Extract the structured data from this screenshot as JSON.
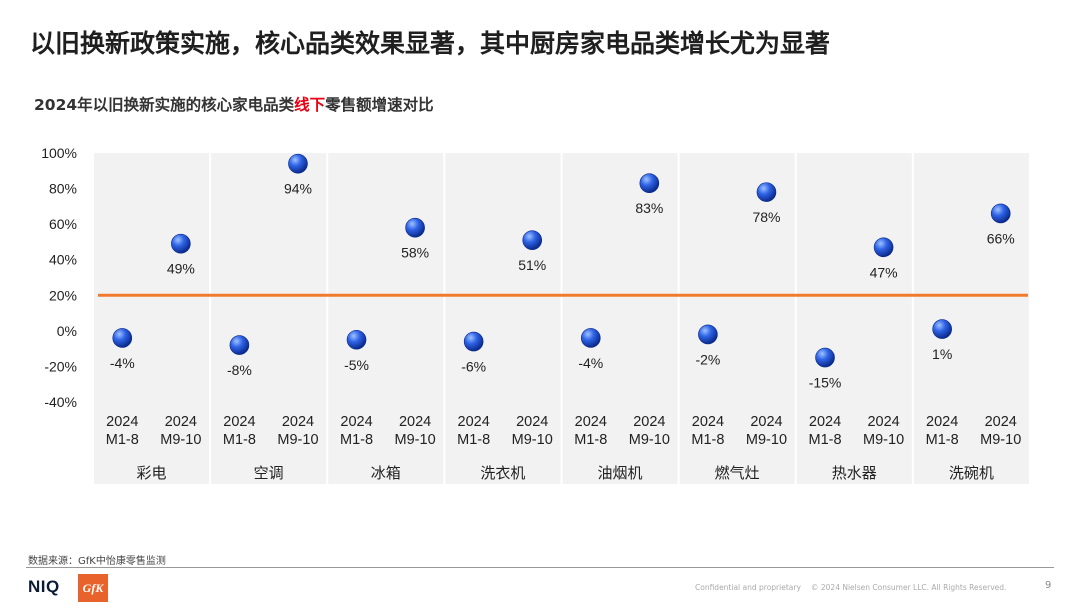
{
  "page": {
    "title": "以旧换新政策实施，核心品类效果显著，其中厨房家电品类增长尤为显著",
    "subtitle_before": "2024年以旧换新实施的核心家电品类",
    "subtitle_highlight": "线下",
    "subtitle_after": "零售额增速对比",
    "source": "数据来源：GfK中怡康零售监测",
    "footer": {
      "confidential": "Confidential and proprietary",
      "copyright": "© 2024 Nielsen Consumer LLC. All Rights Reserved.",
      "page_number": "9",
      "logo_niq": "NIQ",
      "logo_gfk": "GfK"
    }
  },
  "chart_data": {
    "type": "scatter",
    "ylim": [
      -40,
      100
    ],
    "yticks": [
      100,
      80,
      60,
      40,
      20,
      0,
      -20,
      -40
    ],
    "ytick_labels": [
      "100%",
      "80%",
      "60%",
      "40%",
      "20%",
      "0%",
      "-20%",
      "-40%"
    ],
    "reference_line": {
      "value": 20,
      "color": "#f07a2d"
    },
    "periods": [
      {
        "year": "2024",
        "months": "M1-8"
      },
      {
        "year": "2024",
        "months": "M9-10"
      }
    ],
    "categories": [
      "彩电",
      "空调",
      "冰箱",
      "洗衣机",
      "油烟机",
      "燃气灶",
      "热水器",
      "洗碗机"
    ],
    "series": [
      {
        "values": [
          -4,
          -8,
          -5,
          -6,
          -4,
          -2,
          -15,
          1
        ]
      },
      {
        "values": [
          49,
          94,
          58,
          51,
          83,
          78,
          47,
          66
        ]
      }
    ],
    "data_labels": [
      [
        "-4%",
        "49%"
      ],
      [
        "-8%",
        "94%"
      ],
      [
        "-5%",
        "58%"
      ],
      [
        "-6%",
        "51%"
      ],
      [
        "-4%",
        "83%"
      ],
      [
        "-2%",
        "78%"
      ],
      [
        "-15%",
        "47%"
      ],
      [
        "1%",
        "66%"
      ]
    ],
    "colors": {
      "point": "#1f4fd8",
      "panel": "#f2f2f2",
      "reference": "#f07a2d"
    }
  }
}
